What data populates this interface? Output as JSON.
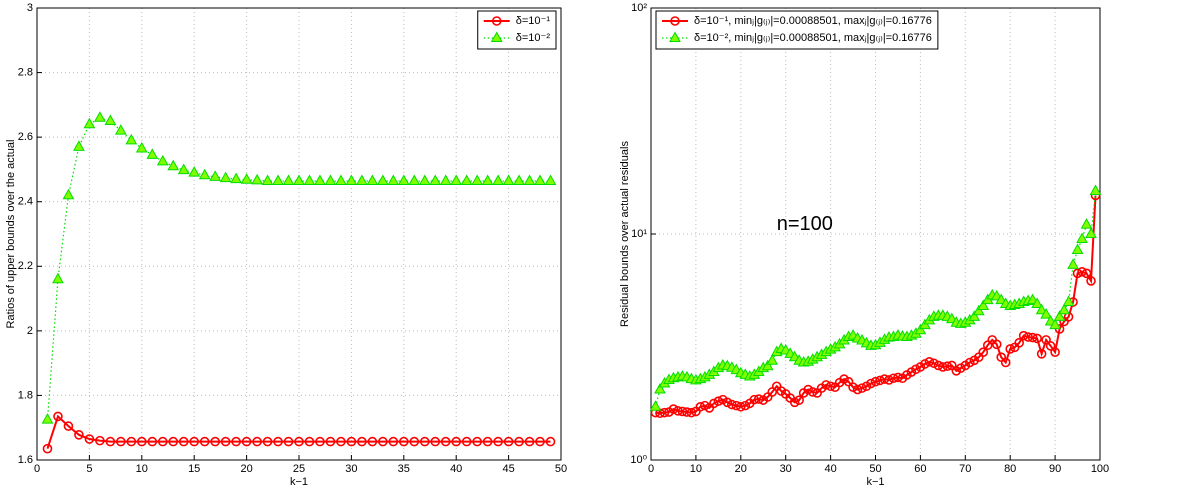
{
  "chart_data": [
    {
      "type": "line",
      "xlabel": "k−1",
      "ylabel": "Ratios of upper bounds over the actual",
      "xlim": [
        0,
        50
      ],
      "xticks": [
        0,
        5,
        10,
        15,
        20,
        25,
        30,
        35,
        40,
        45,
        50
      ],
      "ylim": [
        1.6,
        3
      ],
      "yticks": [
        1.6,
        1.8,
        2,
        2.2,
        2.4,
        2.6,
        2.8,
        3
      ],
      "grid": true,
      "legend": "northeast",
      "x": [
        1,
        2,
        3,
        4,
        5,
        6,
        7,
        8,
        9,
        10,
        11,
        12,
        13,
        14,
        15,
        16,
        17,
        18,
        19,
        20,
        21,
        22,
        23,
        24,
        25,
        26,
        27,
        28,
        29,
        30,
        31,
        32,
        33,
        34,
        35,
        36,
        37,
        38,
        39,
        40,
        41,
        42,
        43,
        44,
        45,
        46,
        47,
        48,
        49
      ],
      "series": [
        {
          "name": "δ=10⁻¹",
          "color": "#ff0000",
          "marker": "circle",
          "linestyle": "solid",
          "values": [
            1.635,
            1.735,
            1.705,
            1.678,
            1.665,
            1.66,
            1.657,
            1.657,
            1.657,
            1.657,
            1.657,
            1.657,
            1.657,
            1.657,
            1.657,
            1.657,
            1.657,
            1.657,
            1.657,
            1.657,
            1.657,
            1.657,
            1.657,
            1.657,
            1.657,
            1.657,
            1.657,
            1.657,
            1.657,
            1.657,
            1.657,
            1.657,
            1.657,
            1.657,
            1.657,
            1.657,
            1.657,
            1.657,
            1.657,
            1.657,
            1.657,
            1.657,
            1.657,
            1.657,
            1.657,
            1.657,
            1.657,
            1.657,
            1.657
          ]
        },
        {
          "name": "δ=10⁻²",
          "color": "#00dd00",
          "marker": "triangle",
          "linestyle": "dotted",
          "values": [
            1.725,
            2.16,
            2.42,
            2.57,
            2.64,
            2.66,
            2.65,
            2.62,
            2.59,
            2.565,
            2.545,
            2.525,
            2.51,
            2.498,
            2.49,
            2.482,
            2.477,
            2.473,
            2.47,
            2.468,
            2.466,
            2.464,
            2.464,
            2.464,
            2.464,
            2.464,
            2.464,
            2.464,
            2.464,
            2.464,
            2.464,
            2.464,
            2.464,
            2.464,
            2.464,
            2.464,
            2.464,
            2.464,
            2.464,
            2.464,
            2.464,
            2.464,
            2.464,
            2.464,
            2.464,
            2.464,
            2.464,
            2.464,
            2.464
          ]
        }
      ]
    },
    {
      "type": "line",
      "xlabel": "k−1",
      "ylabel": "Residual bounds over actual residuals",
      "annotation": "n=100",
      "xlim": [
        0,
        100
      ],
      "xticks": [
        0,
        10,
        20,
        30,
        40,
        50,
        60,
        70,
        80,
        90,
        100
      ],
      "yscale": "log",
      "ylim": [
        1,
        100
      ],
      "yticks": [
        {
          "value": 1,
          "label": "10⁰"
        },
        {
          "value": 10,
          "label": "10¹"
        },
        {
          "value": 100,
          "label": "10²"
        }
      ],
      "grid": true,
      "legend": "northwest",
      "x": [
        1,
        2,
        3,
        4,
        5,
        6,
        7,
        8,
        9,
        10,
        11,
        12,
        13,
        14,
        15,
        16,
        17,
        18,
        19,
        20,
        21,
        22,
        23,
        24,
        25,
        26,
        27,
        28,
        29,
        30,
        31,
        32,
        33,
        34,
        35,
        36,
        37,
        38,
        39,
        40,
        41,
        42,
        43,
        44,
        45,
        46,
        47,
        48,
        49,
        50,
        51,
        52,
        53,
        54,
        55,
        56,
        57,
        58,
        59,
        60,
        61,
        62,
        63,
        64,
        65,
        66,
        67,
        68,
        69,
        70,
        71,
        72,
        73,
        74,
        75,
        76,
        77,
        78,
        79,
        80,
        81,
        82,
        83,
        84,
        85,
        86,
        87,
        88,
        89,
        90,
        91,
        92,
        93,
        94,
        95,
        96,
        97,
        98,
        99
      ],
      "series": [
        {
          "name": "δ=10⁻¹, minⱼ|g₍ⱼ₎|=0.00088501, maxⱼ|g₍ⱼ₎|=0.16776",
          "color": "#ff0000",
          "marker": "circle",
          "linestyle": "solid",
          "values": [
            1.62,
            1.61,
            1.62,
            1.63,
            1.68,
            1.65,
            1.64,
            1.63,
            1.62,
            1.64,
            1.72,
            1.74,
            1.7,
            1.78,
            1.82,
            1.85,
            1.8,
            1.76,
            1.74,
            1.72,
            1.74,
            1.78,
            1.85,
            1.86,
            1.84,
            1.9,
            2.0,
            2.12,
            2.02,
            1.96,
            1.88,
            1.8,
            1.84,
            1.98,
            2.05,
            2.0,
            1.98,
            2.08,
            2.15,
            2.12,
            2.1,
            2.2,
            2.28,
            2.22,
            2.1,
            2.05,
            2.08,
            2.12,
            2.18,
            2.22,
            2.25,
            2.28,
            2.26,
            2.3,
            2.32,
            2.3,
            2.38,
            2.45,
            2.52,
            2.58,
            2.66,
            2.72,
            2.68,
            2.62,
            2.58,
            2.6,
            2.62,
            2.48,
            2.55,
            2.62,
            2.7,
            2.76,
            2.85,
            3.0,
            3.22,
            3.4,
            3.25,
            2.85,
            2.7,
            3.1,
            3.15,
            3.3,
            3.55,
            3.5,
            3.48,
            3.45,
            2.95,
            3.4,
            3.2,
            3.0,
            3.8,
            4.1,
            4.3,
            5.0,
            6.7,
            6.8,
            6.7,
            6.2,
            14.8
          ]
        },
        {
          "name": "δ=10⁻², minⱼ|g₍ⱼ₎|=0.00088501, maxⱼ|g₍ⱼ₎|=0.16776",
          "color": "#00dd00",
          "marker": "triangle",
          "linestyle": "dotted",
          "values": [
            1.72,
            2.05,
            2.18,
            2.26,
            2.3,
            2.32,
            2.34,
            2.32,
            2.28,
            2.25,
            2.28,
            2.32,
            2.38,
            2.45,
            2.55,
            2.62,
            2.6,
            2.56,
            2.5,
            2.42,
            2.38,
            2.34,
            2.38,
            2.45,
            2.55,
            2.6,
            2.75,
            3.0,
            3.1,
            3.05,
            2.95,
            2.85,
            2.75,
            2.7,
            2.72,
            2.78,
            2.85,
            2.92,
            3.0,
            3.08,
            3.15,
            3.25,
            3.38,
            3.5,
            3.55,
            3.45,
            3.38,
            3.28,
            3.2,
            3.22,
            3.3,
            3.4,
            3.48,
            3.5,
            3.55,
            3.52,
            3.5,
            3.55,
            3.62,
            3.75,
            3.95,
            4.15,
            4.3,
            4.35,
            4.35,
            4.3,
            4.2,
            4.05,
            4.0,
            4.05,
            4.15,
            4.3,
            4.55,
            4.8,
            5.1,
            5.35,
            5.3,
            5.1,
            4.9,
            4.8,
            4.85,
            4.9,
            5.0,
            5.05,
            5.1,
            4.9,
            4.6,
            4.4,
            4.1,
            3.95,
            4.3,
            4.6,
            5.0,
            7.3,
            8.5,
            9.5,
            11.0,
            10.0,
            15.5
          ]
        }
      ]
    }
  ]
}
